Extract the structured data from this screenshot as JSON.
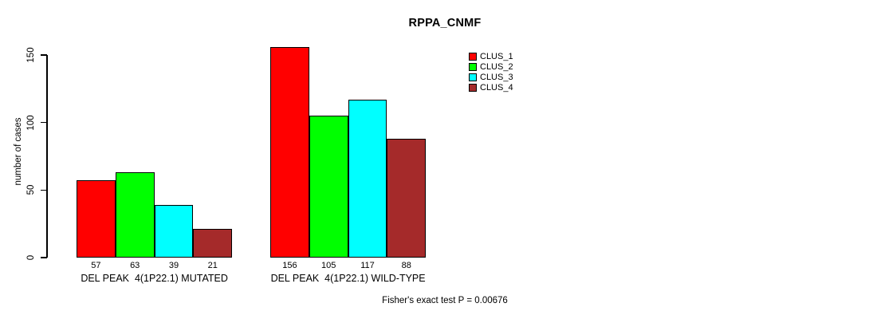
{
  "chart_data": {
    "type": "bar",
    "title": "RPPA_CNMF",
    "ylabel": "number of cases",
    "xlabel": "",
    "ylim": [
      0,
      150
    ],
    "yticks": [
      0,
      50,
      100,
      150
    ],
    "grid": false,
    "legend_position": "top-right",
    "categories": [
      "DEL PEAK  4(1P22.1) MUTATED",
      "DEL PEAK  4(1P22.1) WILD-TYPE"
    ],
    "series": [
      {
        "name": "CLUS_1",
        "color": "#ff0000",
        "values": [
          57,
          156
        ]
      },
      {
        "name": "CLUS_2",
        "color": "#00ff00",
        "values": [
          63,
          105
        ]
      },
      {
        "name": "CLUS_3",
        "color": "#00ffff",
        "values": [
          39,
          117
        ]
      },
      {
        "name": "CLUS_4",
        "color": "#a52a2a",
        "values": [
          21,
          88
        ]
      }
    ],
    "bar_value_labels": [
      [
        57,
        63,
        39,
        21
      ],
      [
        156,
        105,
        117,
        88
      ]
    ],
    "annotation": "Fisher's exact test P = 0.00676"
  }
}
